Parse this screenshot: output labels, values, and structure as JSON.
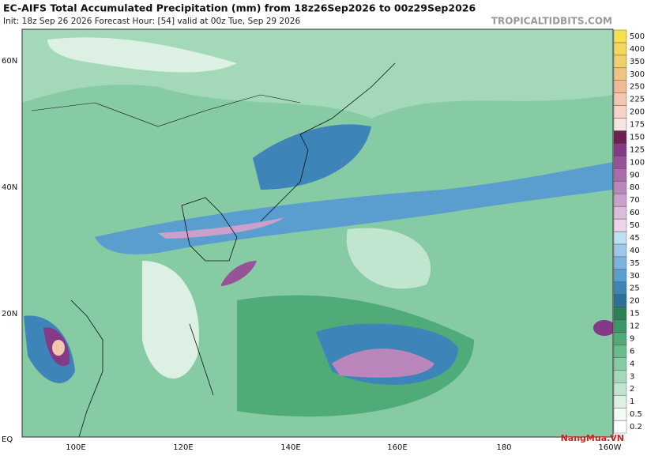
{
  "header": {
    "title": "EC-AIFS Total Accumulated Precipitation (mm) from 18z26Sep2026 to 00z29Sep2026",
    "subtitle": "Init: 18z Sep 26 2026   Forecast Hour: [54]   valid at 00z Tue, Sep 29 2026",
    "site": "TROPICALTIDBITS.COM"
  },
  "map": {
    "lat_labels": [
      "60N",
      "40N",
      "20N",
      "EQ"
    ],
    "lon_labels": [
      "100E",
      "120E",
      "140E",
      "160E",
      "180",
      "160W"
    ]
  },
  "colorbar": {
    "levels": [
      0.2,
      0.5,
      1,
      2,
      3,
      4,
      6,
      9,
      12,
      15,
      20,
      25,
      30,
      35,
      40,
      45,
      50,
      60,
      70,
      80,
      90,
      100,
      125,
      150,
      175,
      200,
      225,
      250,
      300,
      350,
      400,
      500
    ],
    "colors": [
      "#ffffff",
      "#f4faf6",
      "#dcf1e3",
      "#c0e6cf",
      "#a3d9b9",
      "#86cba3",
      "#69bc8d",
      "#4fab78",
      "#3a9766",
      "#2b8257",
      "#2d7197",
      "#3d84b8",
      "#5a9dcf",
      "#7bb4dd",
      "#9cc9e8",
      "#bfdff2",
      "#ead6ea",
      "#dbbcdb",
      "#cba1cb",
      "#bb86bb",
      "#aa6caa",
      "#985298",
      "#853a85",
      "#6e2050",
      "#f7e3df",
      "#f4d4c6",
      "#f2c7ae",
      "#f0ba95",
      "#f0c480",
      "#f2cf6d",
      "#f4d85c",
      "#f6e04d"
    ]
  },
  "watermark": "NangMua.VN"
}
